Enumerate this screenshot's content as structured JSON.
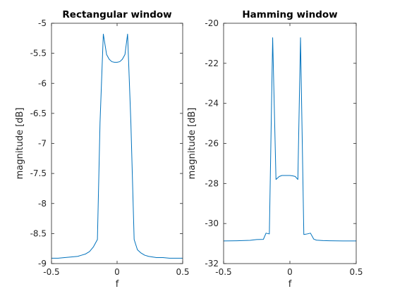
{
  "chart_data": [
    {
      "type": "line",
      "title": "Rectangular window",
      "xlabel": "f",
      "ylabel": "magnitude [dB]",
      "xlim": [
        -0.5,
        0.5
      ],
      "ylim": [
        -9,
        -5
      ],
      "xticks": [
        -0.5,
        0,
        0.5
      ],
      "xtick_labels": [
        "-0.5",
        "0",
        "0.5"
      ],
      "yticks": [
        -9,
        -8.5,
        -8,
        -7.5,
        -7,
        -6.5,
        -6,
        -5.5,
        -5
      ],
      "ytick_labels": [
        "-9",
        "-8.5",
        "-8",
        "-7.5",
        "-7",
        "-6.5",
        "-6",
        "-5.5",
        "-5"
      ],
      "grid": false,
      "color": "#0072bd",
      "series": [
        {
          "x": [
            -0.5,
            -0.45,
            -0.4,
            -0.35,
            -0.3,
            -0.27,
            -0.24,
            -0.21,
            -0.18,
            -0.15,
            -0.13,
            -0.105,
            -0.08,
            -0.06,
            -0.04,
            -0.02,
            0,
            0.02,
            0.04,
            0.06,
            0.08,
            0.105,
            0.13,
            0.155,
            0.18,
            0.21,
            0.24,
            0.27,
            0.3,
            0.35,
            0.4,
            0.45,
            0.5
          ],
          "y": [
            -8.91,
            -8.91,
            -8.9,
            -8.89,
            -8.88,
            -8.86,
            -8.84,
            -8.8,
            -8.72,
            -8.6,
            -6.65,
            -5.18,
            -5.52,
            -5.6,
            -5.64,
            -5.65,
            -5.65,
            -5.64,
            -5.6,
            -5.52,
            -5.18,
            -6.65,
            -8.6,
            -8.77,
            -8.82,
            -8.86,
            -8.88,
            -8.89,
            -8.9,
            -8.9,
            -8.91,
            -8.91,
            -8.91
          ]
        }
      ]
    },
    {
      "type": "line",
      "title": "Hamming window",
      "xlabel": "f",
      "ylabel": "magnitude [dB]",
      "xlim": [
        -0.5,
        0.5
      ],
      "ylim": [
        -32,
        -20
      ],
      "xticks": [
        -0.5,
        0,
        0.5
      ],
      "xtick_labels": [
        "-0.5",
        "0",
        "0.5"
      ],
      "yticks": [
        -32,
        -30,
        -28,
        -26,
        -24,
        -22,
        -20
      ],
      "ytick_labels": [
        "-32",
        "-30",
        "-28",
        "-26",
        "-24",
        "-22",
        "-20"
      ],
      "grid": false,
      "color": "#0072bd",
      "series": [
        {
          "x": [
            -0.5,
            -0.4,
            -0.3,
            -0.25,
            -0.2,
            -0.18,
            -0.155,
            -0.13,
            -0.105,
            -0.08,
            -0.06,
            -0.04,
            -0.02,
            0,
            0.02,
            0.04,
            0.06,
            0.08,
            0.105,
            0.13,
            0.155,
            0.18,
            0.2,
            0.25,
            0.3,
            0.4,
            0.5
          ],
          "y": [
            -30.87,
            -30.86,
            -30.84,
            -30.8,
            -30.79,
            -30.48,
            -30.52,
            -20.72,
            -27.8,
            -27.65,
            -27.6,
            -27.6,
            -27.6,
            -27.6,
            -27.62,
            -27.65,
            -27.8,
            -20.72,
            -30.55,
            -30.52,
            -30.48,
            -30.78,
            -30.83,
            -30.85,
            -30.86,
            -30.87,
            -30.87
          ]
        }
      ]
    }
  ]
}
